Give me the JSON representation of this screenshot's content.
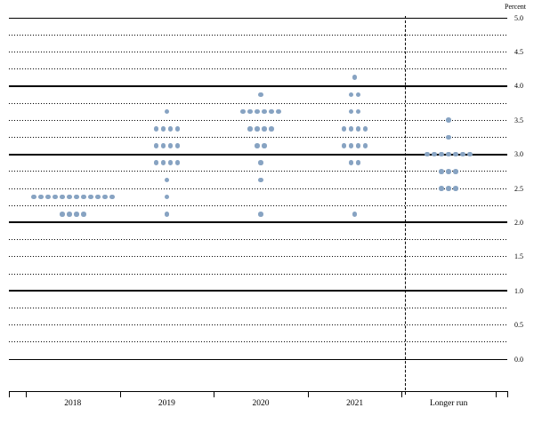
{
  "chart_data": {
    "type": "scatter",
    "unit_label": "Percent",
    "ylim": [
      0.0,
      5.0
    ],
    "gridline_step": 0.25,
    "grid": "solid lines at whole percents, dotted lines at quarter percents",
    "legend": "none",
    "y_ticks": [
      {
        "label": "5.0",
        "value": 5.0
      },
      {
        "label": "4.5",
        "value": 4.5
      },
      {
        "label": "4.0",
        "value": 4.0
      },
      {
        "label": "3.5",
        "value": 3.5
      },
      {
        "label": "3.0",
        "value": 3.0
      },
      {
        "label": "2.5",
        "value": 2.5
      },
      {
        "label": "2.0",
        "value": 2.0
      },
      {
        "label": "1.5",
        "value": 1.5
      },
      {
        "label": "1.0",
        "value": 1.0
      },
      {
        "label": "0.5",
        "value": 0.5
      },
      {
        "label": "0.0",
        "value": 0.0
      }
    ],
    "categories": [
      "2018",
      "2019",
      "2020",
      "2021",
      "Longer run"
    ],
    "dot_color": "#87a3c2",
    "separator_after_category_index": 3,
    "series": [
      {
        "category": "2018",
        "dots": [
          {
            "value": 2.375,
            "count": 12
          },
          {
            "value": 2.125,
            "count": 4
          }
        ]
      },
      {
        "category": "2019",
        "dots": [
          {
            "value": 3.625,
            "count": 1
          },
          {
            "value": 3.375,
            "count": 4
          },
          {
            "value": 3.125,
            "count": 4
          },
          {
            "value": 2.875,
            "count": 4
          },
          {
            "value": 2.625,
            "count": 1
          },
          {
            "value": 2.375,
            "count": 1
          },
          {
            "value": 2.125,
            "count": 1
          }
        ]
      },
      {
        "category": "2020",
        "dots": [
          {
            "value": 3.875,
            "count": 1
          },
          {
            "value": 3.625,
            "count": 6
          },
          {
            "value": 3.375,
            "count": 4
          },
          {
            "value": 3.125,
            "count": 2
          },
          {
            "value": 2.875,
            "count": 1
          },
          {
            "value": 2.625,
            "count": 1
          },
          {
            "value": 2.125,
            "count": 1
          }
        ]
      },
      {
        "category": "2021",
        "dots": [
          {
            "value": 4.125,
            "count": 1
          },
          {
            "value": 3.875,
            "count": 2
          },
          {
            "value": 3.625,
            "count": 2
          },
          {
            "value": 3.375,
            "count": 4
          },
          {
            "value": 3.125,
            "count": 4
          },
          {
            "value": 2.875,
            "count": 2
          },
          {
            "value": 2.125,
            "count": 1
          }
        ]
      },
      {
        "category": "Longer run",
        "dots": [
          {
            "value": 3.5,
            "count": 1
          },
          {
            "value": 3.25,
            "count": 1
          },
          {
            "value": 3.0,
            "count": 7
          },
          {
            "value": 2.75,
            "count": 3
          },
          {
            "value": 2.5,
            "count": 3
          }
        ]
      }
    ]
  }
}
